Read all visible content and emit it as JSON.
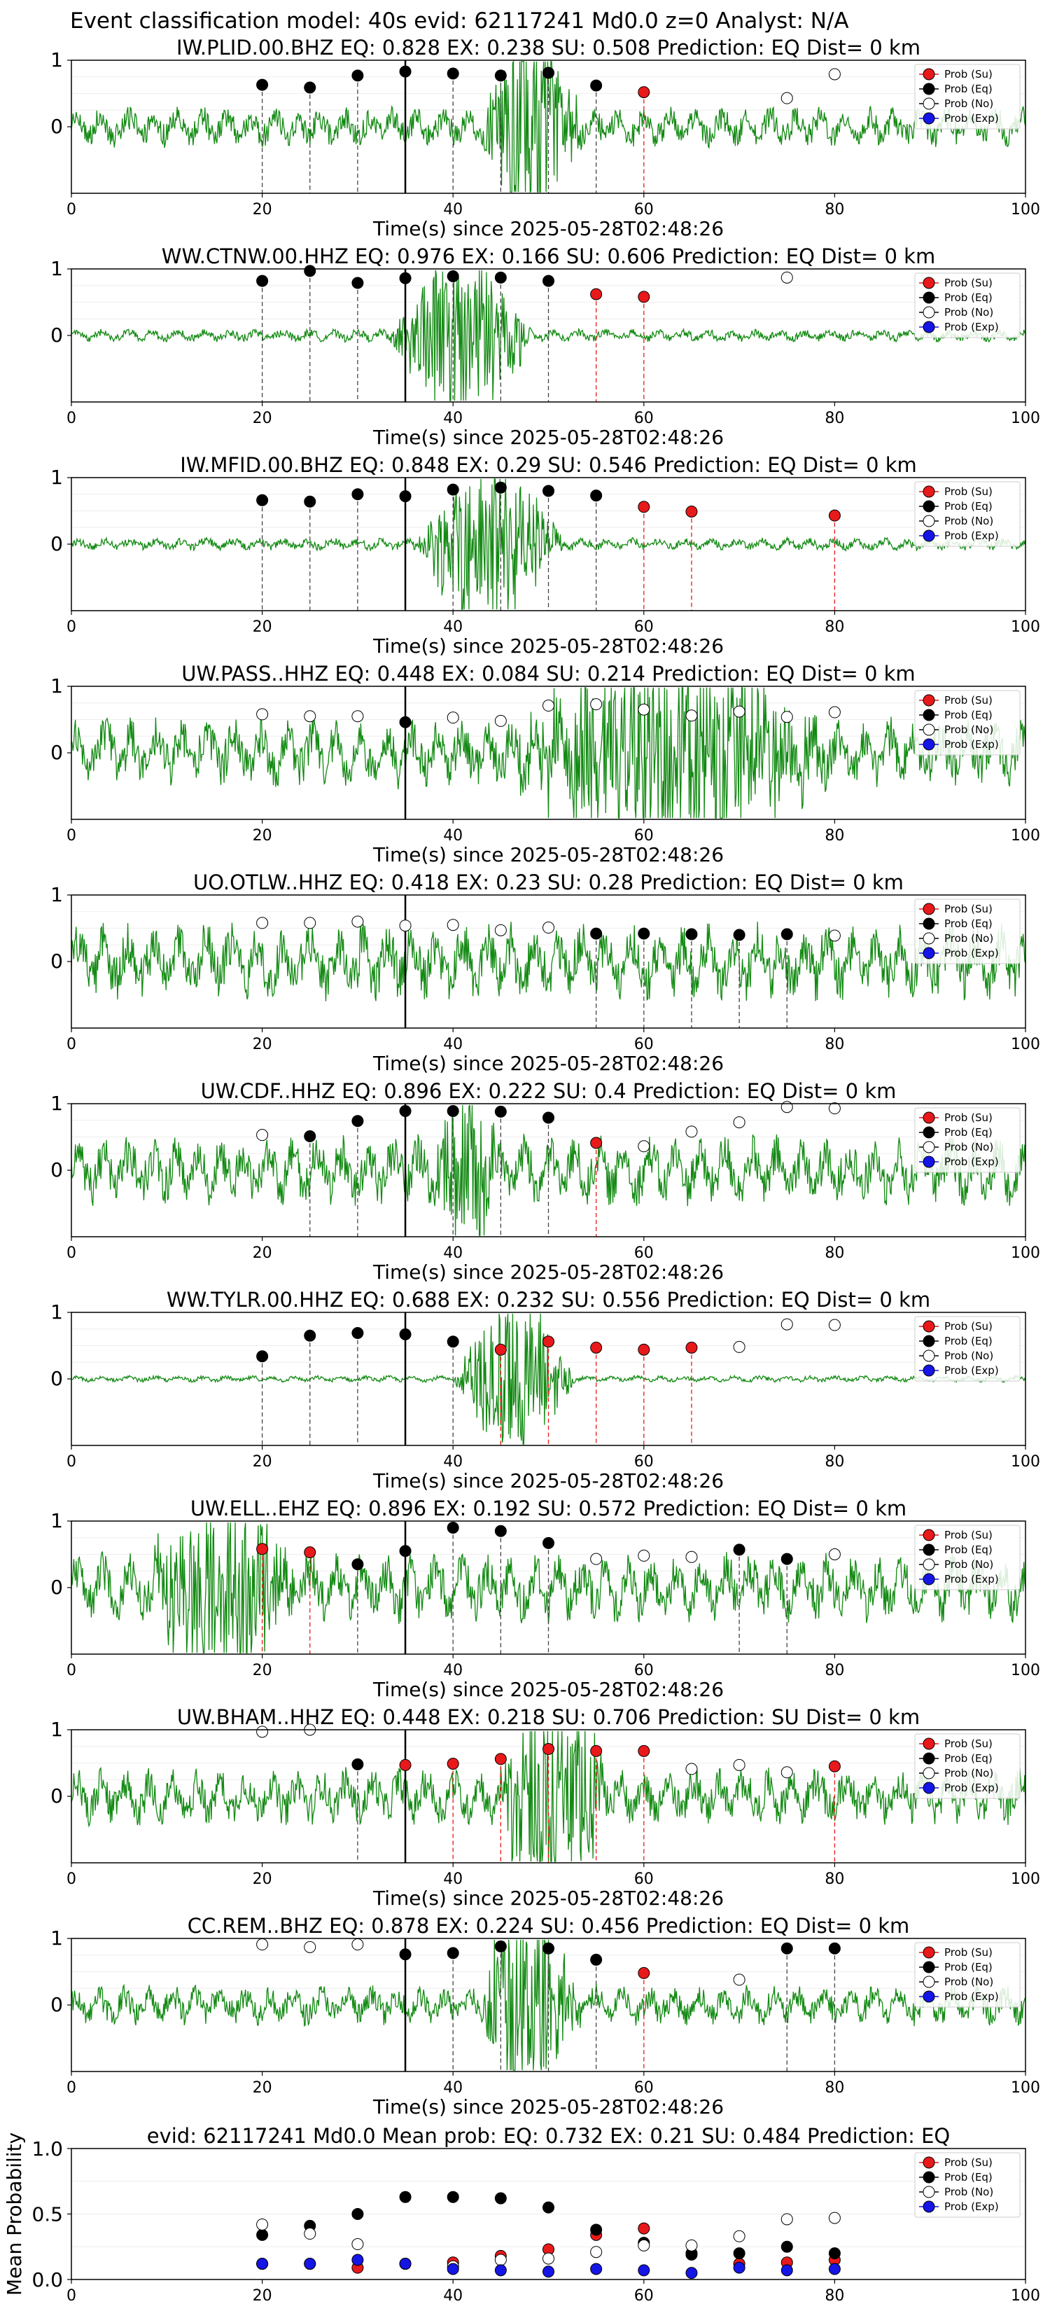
{
  "title": "Event classification model: 40s evid: 62117241 Md0.0 z=0 Analyst: N/A",
  "xlabel": "Time(s) since 2025-05-28T02:48:26",
  "legend": [
    {
      "label": "Prob (Su)",
      "color": "#e8191a",
      "fill": true
    },
    {
      "label": "Prob (Eq)",
      "color": "#000000",
      "fill": true
    },
    {
      "label": "Prob (No)",
      "color": "#ffffff",
      "fill": false
    },
    {
      "label": "Prob (Exp)",
      "color": "#1515e6",
      "fill": true
    }
  ],
  "colors": {
    "trace": "#138a13",
    "su": "#e8191a",
    "eq": "#000000",
    "no": "#ffffff",
    "exp": "#1515e6"
  },
  "chart_data": [
    {
      "type": "scatter",
      "title": "IW.PLID.00.BHZ   EQ: 0.828  EX: 0.238  SU: 0.508   Prediction: EQ    Dist= 0 km",
      "xlim": [
        0,
        100
      ],
      "xticks": [
        0,
        20,
        40,
        60,
        80,
        100
      ],
      "yticks": [
        0,
        1
      ],
      "ylim": [
        -1,
        1
      ],
      "pick": 35,
      "amp": 0.32,
      "burst": [
        43,
        58,
        1.6
      ],
      "points": [
        {
          "x": 20,
          "y": 0.63,
          "c": "eq"
        },
        {
          "x": 25,
          "y": 0.59,
          "c": "eq"
        },
        {
          "x": 30,
          "y": 0.77,
          "c": "eq"
        },
        {
          "x": 35,
          "y": 0.83,
          "c": "eq"
        },
        {
          "x": 40,
          "y": 0.8,
          "c": "eq"
        },
        {
          "x": 45,
          "y": 0.77,
          "c": "eq"
        },
        {
          "x": 50,
          "y": 0.81,
          "c": "eq"
        },
        {
          "x": 55,
          "y": 0.62,
          "c": "eq"
        },
        {
          "x": 60,
          "y": 0.52,
          "c": "su"
        },
        {
          "x": 75,
          "y": 0.43,
          "c": "no"
        },
        {
          "x": 80,
          "y": 0.79,
          "c": "no"
        }
      ]
    },
    {
      "type": "scatter",
      "title": "WW.CTNW.00.HHZ   EQ: 0.976  EX: 0.166  SU: 0.606   Prediction: EQ    Dist= 0 km",
      "xlim": [
        0,
        100
      ],
      "xticks": [
        0,
        20,
        40,
        60,
        80,
        100
      ],
      "yticks": [
        0,
        1
      ],
      "ylim": [
        -1,
        1
      ],
      "pick": 35,
      "amp": 0.1,
      "burst": [
        33,
        55,
        1.2
      ],
      "points": [
        {
          "x": 20,
          "y": 0.82,
          "c": "eq"
        },
        {
          "x": 25,
          "y": 0.97,
          "c": "eq"
        },
        {
          "x": 30,
          "y": 0.79,
          "c": "eq"
        },
        {
          "x": 35,
          "y": 0.86,
          "c": "eq"
        },
        {
          "x": 40,
          "y": 0.89,
          "c": "eq"
        },
        {
          "x": 45,
          "y": 0.87,
          "c": "eq"
        },
        {
          "x": 50,
          "y": 0.82,
          "c": "eq"
        },
        {
          "x": 55,
          "y": 0.62,
          "c": "su"
        },
        {
          "x": 60,
          "y": 0.58,
          "c": "su"
        },
        {
          "x": 75,
          "y": 0.87,
          "c": "no"
        }
      ]
    },
    {
      "type": "scatter",
      "title": "IW.MFID.00.BHZ   EQ: 0.848  EX: 0.29  SU: 0.546   Prediction: EQ    Dist= 0 km",
      "xlim": [
        0,
        100
      ],
      "xticks": [
        0,
        20,
        40,
        60,
        80,
        100
      ],
      "yticks": [
        0,
        1
      ],
      "ylim": [
        -1,
        1
      ],
      "pick": 35,
      "amp": 0.1,
      "burst": [
        36,
        58,
        1.3
      ],
      "points": [
        {
          "x": 20,
          "y": 0.66,
          "c": "eq"
        },
        {
          "x": 25,
          "y": 0.64,
          "c": "eq"
        },
        {
          "x": 30,
          "y": 0.75,
          "c": "eq"
        },
        {
          "x": 35,
          "y": 0.72,
          "c": "eq"
        },
        {
          "x": 40,
          "y": 0.82,
          "c": "eq"
        },
        {
          "x": 45,
          "y": 0.85,
          "c": "eq"
        },
        {
          "x": 50,
          "y": 0.8,
          "c": "eq"
        },
        {
          "x": 55,
          "y": 0.73,
          "c": "eq"
        },
        {
          "x": 60,
          "y": 0.56,
          "c": "su"
        },
        {
          "x": 65,
          "y": 0.49,
          "c": "su"
        },
        {
          "x": 80,
          "y": 0.43,
          "c": "su"
        }
      ]
    },
    {
      "type": "scatter",
      "title": "UW.PASS..HHZ   EQ: 0.448  EX: 0.084  SU: 0.214   Prediction: EQ    Dist= 0 km",
      "xlim": [
        0,
        100
      ],
      "xticks": [
        0,
        20,
        40,
        60,
        80,
        100
      ],
      "yticks": [
        0,
        1
      ],
      "ylim": [
        -1,
        1
      ],
      "pick": 35,
      "amp": 0.55,
      "burst": [
        45,
        95,
        1.4
      ],
      "points": [
        {
          "x": 20,
          "y": 0.58,
          "c": "no"
        },
        {
          "x": 25,
          "y": 0.55,
          "c": "no"
        },
        {
          "x": 30,
          "y": 0.55,
          "c": "no"
        },
        {
          "x": 35,
          "y": 0.46,
          "c": "eq"
        },
        {
          "x": 40,
          "y": 0.53,
          "c": "no"
        },
        {
          "x": 45,
          "y": 0.48,
          "c": "no"
        },
        {
          "x": 50,
          "y": 0.71,
          "c": "no"
        },
        {
          "x": 55,
          "y": 0.73,
          "c": "no"
        },
        {
          "x": 60,
          "y": 0.65,
          "c": "no"
        },
        {
          "x": 65,
          "y": 0.56,
          "c": "no"
        },
        {
          "x": 70,
          "y": 0.62,
          "c": "no"
        },
        {
          "x": 75,
          "y": 0.54,
          "c": "no"
        },
        {
          "x": 80,
          "y": 0.61,
          "c": "no"
        }
      ]
    },
    {
      "type": "scatter",
      "title": "UO.OTLW..HHZ   EQ: 0.418  EX: 0.23  SU: 0.28   Prediction: EQ    Dist= 0 km",
      "xlim": [
        0,
        100
      ],
      "xticks": [
        0,
        20,
        40,
        60,
        80,
        100
      ],
      "yticks": [
        0,
        1
      ],
      "ylim": [
        -1,
        1
      ],
      "pick": 35,
      "amp": 0.6,
      "burst": [
        0,
        0,
        1
      ],
      "points": [
        {
          "x": 20,
          "y": 0.58,
          "c": "no"
        },
        {
          "x": 25,
          "y": 0.58,
          "c": "no"
        },
        {
          "x": 30,
          "y": 0.6,
          "c": "no"
        },
        {
          "x": 35,
          "y": 0.54,
          "c": "no"
        },
        {
          "x": 40,
          "y": 0.55,
          "c": "no"
        },
        {
          "x": 45,
          "y": 0.47,
          "c": "no"
        },
        {
          "x": 50,
          "y": 0.51,
          "c": "no"
        },
        {
          "x": 55,
          "y": 0.42,
          "c": "eq"
        },
        {
          "x": 60,
          "y": 0.42,
          "c": "eq"
        },
        {
          "x": 65,
          "y": 0.41,
          "c": "eq"
        },
        {
          "x": 70,
          "y": 0.4,
          "c": "eq"
        },
        {
          "x": 75,
          "y": 0.41,
          "c": "eq"
        },
        {
          "x": 80,
          "y": 0.39,
          "c": "no"
        }
      ]
    },
    {
      "type": "scatter",
      "title": "UW.CDF..HHZ   EQ: 0.896  EX: 0.222  SU: 0.4   Prediction: EQ    Dist= 0 km",
      "xlim": [
        0,
        100
      ],
      "xticks": [
        0,
        20,
        40,
        60,
        80,
        100
      ],
      "yticks": [
        0,
        1
      ],
      "ylim": [
        -1,
        1
      ],
      "pick": 35,
      "amp": 0.55,
      "burst": [
        38,
        48,
        1.3
      ],
      "points": [
        {
          "x": 20,
          "y": 0.53,
          "c": "no"
        },
        {
          "x": 25,
          "y": 0.51,
          "c": "eq"
        },
        {
          "x": 30,
          "y": 0.74,
          "c": "eq"
        },
        {
          "x": 35,
          "y": 0.89,
          "c": "eq"
        },
        {
          "x": 40,
          "y": 0.89,
          "c": "eq"
        },
        {
          "x": 45,
          "y": 0.88,
          "c": "eq"
        },
        {
          "x": 50,
          "y": 0.79,
          "c": "eq"
        },
        {
          "x": 55,
          "y": 0.41,
          "c": "su"
        },
        {
          "x": 60,
          "y": 0.36,
          "c": "no"
        },
        {
          "x": 65,
          "y": 0.58,
          "c": "no"
        },
        {
          "x": 70,
          "y": 0.72,
          "c": "no"
        },
        {
          "x": 75,
          "y": 0.95,
          "c": "no"
        },
        {
          "x": 80,
          "y": 0.93,
          "c": "no"
        }
      ]
    },
    {
      "type": "scatter",
      "title": "WW.TYLR.00.HHZ   EQ: 0.688  EX: 0.232  SU: 0.556   Prediction: EQ    Dist= 0 km",
      "xlim": [
        0,
        100
      ],
      "xticks": [
        0,
        20,
        40,
        60,
        80,
        100
      ],
      "yticks": [
        0,
        1
      ],
      "ylim": [
        -1,
        1
      ],
      "pick": 35,
      "amp": 0.05,
      "burst": [
        40,
        58,
        1.2
      ],
      "points": [
        {
          "x": 20,
          "y": 0.34,
          "c": "eq"
        },
        {
          "x": 25,
          "y": 0.65,
          "c": "eq"
        },
        {
          "x": 30,
          "y": 0.69,
          "c": "eq"
        },
        {
          "x": 35,
          "y": 0.67,
          "c": "eq"
        },
        {
          "x": 40,
          "y": 0.56,
          "c": "eq"
        },
        {
          "x": 45,
          "y": 0.44,
          "c": "su"
        },
        {
          "x": 50,
          "y": 0.56,
          "c": "su"
        },
        {
          "x": 55,
          "y": 0.47,
          "c": "su"
        },
        {
          "x": 60,
          "y": 0.44,
          "c": "su"
        },
        {
          "x": 65,
          "y": 0.47,
          "c": "su"
        },
        {
          "x": 70,
          "y": 0.48,
          "c": "no"
        },
        {
          "x": 75,
          "y": 0.82,
          "c": "no"
        },
        {
          "x": 80,
          "y": 0.81,
          "c": "no"
        }
      ]
    },
    {
      "type": "scatter",
      "title": "UW.ELL..EHZ   EQ: 0.896  EX: 0.192  SU: 0.572   Prediction: EQ    Dist= 0 km",
      "xlim": [
        0,
        100
      ],
      "xticks": [
        0,
        20,
        40,
        60,
        80,
        100
      ],
      "yticks": [
        0,
        1
      ],
      "ylim": [
        -1,
        1
      ],
      "pick": 35,
      "amp": 0.55,
      "burst": [
        8,
        30,
        1.5
      ],
      "points": [
        {
          "x": 20,
          "y": 0.58,
          "c": "su"
        },
        {
          "x": 25,
          "y": 0.53,
          "c": "su"
        },
        {
          "x": 30,
          "y": 0.35,
          "c": "eq"
        },
        {
          "x": 35,
          "y": 0.55,
          "c": "eq"
        },
        {
          "x": 40,
          "y": 0.9,
          "c": "eq"
        },
        {
          "x": 45,
          "y": 0.85,
          "c": "eq"
        },
        {
          "x": 50,
          "y": 0.67,
          "c": "eq"
        },
        {
          "x": 55,
          "y": 0.43,
          "c": "no"
        },
        {
          "x": 60,
          "y": 0.48,
          "c": "no"
        },
        {
          "x": 65,
          "y": 0.46,
          "c": "no"
        },
        {
          "x": 70,
          "y": 0.57,
          "c": "eq"
        },
        {
          "x": 75,
          "y": 0.43,
          "c": "eq"
        },
        {
          "x": 80,
          "y": 0.5,
          "c": "no"
        }
      ]
    },
    {
      "type": "scatter",
      "title": "UW.BHAM..HHZ   EQ: 0.448  EX: 0.218  SU: 0.706   Prediction: SU    Dist= 0 km",
      "xlim": [
        0,
        100
      ],
      "xticks": [
        0,
        20,
        40,
        60,
        80,
        100
      ],
      "yticks": [
        0,
        1
      ],
      "ylim": [
        -1,
        1
      ],
      "pick": 35,
      "amp": 0.45,
      "burst": [
        44,
        62,
        1.6
      ],
      "points": [
        {
          "x": 20,
          "y": 0.97,
          "c": "no"
        },
        {
          "x": 25,
          "y": 1.0,
          "c": "no"
        },
        {
          "x": 30,
          "y": 0.48,
          "c": "eq"
        },
        {
          "x": 35,
          "y": 0.47,
          "c": "su"
        },
        {
          "x": 40,
          "y": 0.49,
          "c": "su"
        },
        {
          "x": 45,
          "y": 0.56,
          "c": "su"
        },
        {
          "x": 50,
          "y": 0.71,
          "c": "su"
        },
        {
          "x": 55,
          "y": 0.68,
          "c": "su"
        },
        {
          "x": 60,
          "y": 0.68,
          "c": "su"
        },
        {
          "x": 65,
          "y": 0.41,
          "c": "no"
        },
        {
          "x": 70,
          "y": 0.47,
          "c": "no"
        },
        {
          "x": 75,
          "y": 0.36,
          "c": "no"
        },
        {
          "x": 80,
          "y": 0.45,
          "c": "su"
        }
      ]
    },
    {
      "type": "scatter",
      "title": "CC.REM..BHZ   EQ: 0.878  EX: 0.224  SU: 0.456   Prediction: EQ    Dist= 0 km",
      "xlim": [
        0,
        100
      ],
      "xticks": [
        0,
        20,
        40,
        60,
        80,
        100
      ],
      "yticks": [
        0,
        1
      ],
      "ylim": [
        -1,
        1
      ],
      "pick": 35,
      "amp": 0.32,
      "burst": [
        42,
        58,
        1.4
      ],
      "points": [
        {
          "x": 20,
          "y": 0.91,
          "c": "no"
        },
        {
          "x": 25,
          "y": 0.87,
          "c": "no"
        },
        {
          "x": 30,
          "y": 0.91,
          "c": "no"
        },
        {
          "x": 35,
          "y": 0.76,
          "c": "eq"
        },
        {
          "x": 40,
          "y": 0.78,
          "c": "eq"
        },
        {
          "x": 45,
          "y": 0.88,
          "c": "eq"
        },
        {
          "x": 50,
          "y": 0.85,
          "c": "eq"
        },
        {
          "x": 55,
          "y": 0.68,
          "c": "eq"
        },
        {
          "x": 60,
          "y": 0.48,
          "c": "su"
        },
        {
          "x": 70,
          "y": 0.38,
          "c": "no"
        },
        {
          "x": 75,
          "y": 0.85,
          "c": "eq"
        },
        {
          "x": 80,
          "y": 0.85,
          "c": "eq"
        }
      ]
    },
    {
      "type": "scatter",
      "title": "evid: 62117241  Md0.0   Mean prob:   EQ: 0.732  EX: 0.21  SU: 0.484   Prediction: EQ",
      "ylabel": "Mean Probability",
      "xlim": [
        0,
        100
      ],
      "ylim": [
        0,
        1
      ],
      "xticks": [
        0,
        20,
        40,
        60,
        80,
        100
      ],
      "yticks": [
        0.0,
        0.5,
        1.0
      ],
      "series": [
        {
          "name": "Prob (Su)",
          "c": "su",
          "x": [
            20,
            25,
            30,
            35,
            40,
            45,
            50,
            55,
            60,
            65,
            70,
            75,
            80
          ],
          "y": [
            0.12,
            0.12,
            0.09,
            0.12,
            0.13,
            0.18,
            0.23,
            0.34,
            0.39,
            0.2,
            0.12,
            0.13,
            0.15
          ]
        },
        {
          "name": "Prob (Eq)",
          "c": "eq",
          "x": [
            20,
            25,
            30,
            35,
            40,
            45,
            50,
            55,
            60,
            65,
            70,
            75,
            80
          ],
          "y": [
            0.34,
            0.41,
            0.5,
            0.63,
            0.63,
            0.62,
            0.55,
            0.38,
            0.28,
            0.19,
            0.2,
            0.25,
            0.2
          ]
        },
        {
          "name": "Prob (No)",
          "c": "no",
          "x": [
            20,
            25,
            30,
            35,
            40,
            45,
            50,
            55,
            60,
            65,
            70,
            75,
            80
          ],
          "y": [
            0.42,
            0.35,
            0.27,
            0.12,
            0.1,
            0.15,
            0.16,
            0.21,
            0.26,
            0.26,
            0.33,
            0.46,
            0.47
          ]
        },
        {
          "name": "Prob (Exp)",
          "c": "exp",
          "x": [
            20,
            25,
            30,
            35,
            40,
            45,
            50,
            55,
            60,
            65,
            70,
            75,
            80
          ],
          "y": [
            0.12,
            0.12,
            0.15,
            0.12,
            0.08,
            0.07,
            0.06,
            0.08,
            0.07,
            0.05,
            0.09,
            0.07,
            0.08
          ]
        }
      ]
    }
  ]
}
